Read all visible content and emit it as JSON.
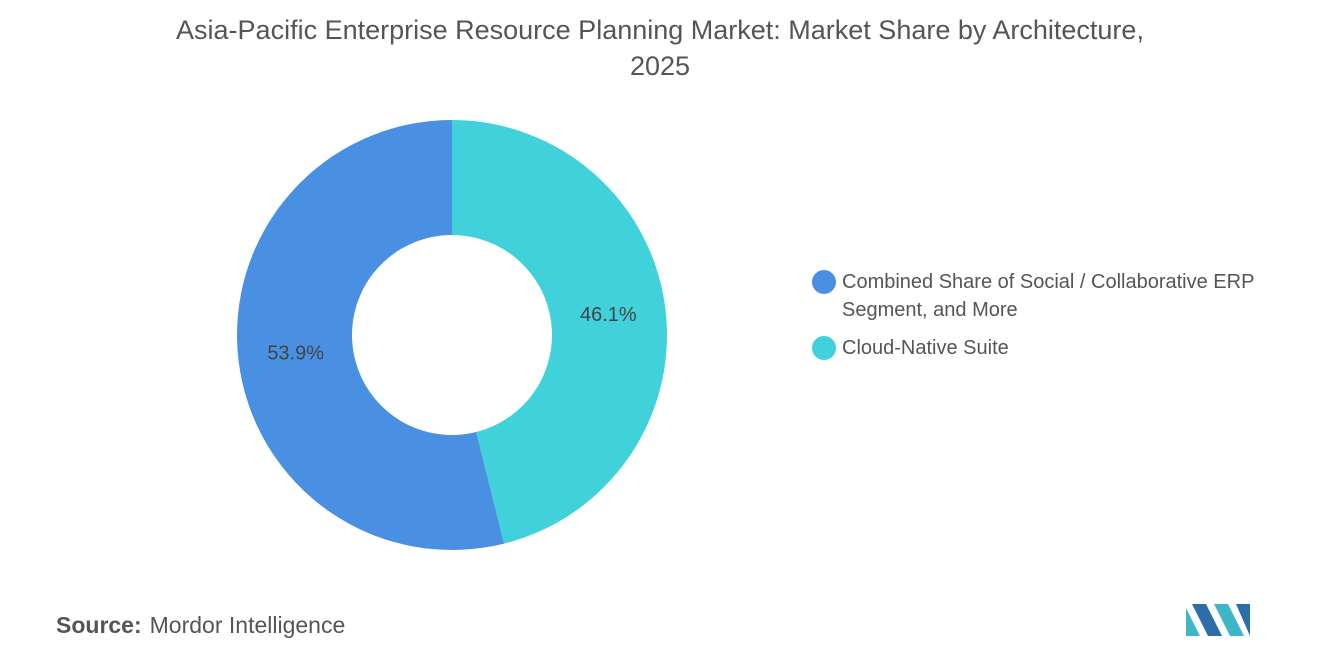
{
  "chart_data": {
    "type": "pie",
    "donut": true,
    "title": "Asia-Pacific Enterprise Resource Planning Market: Market Share by Architecture, 2025",
    "categories": [
      "Combined Share of Social / Collaborative ERP Segment, and More",
      "Cloud-Native Suite"
    ],
    "values": [
      53.9,
      46.1
    ],
    "value_labels": [
      "53.9%",
      "46.1%"
    ],
    "colors": [
      "#4a90e2",
      "#40d1db"
    ],
    "source_label": "Source:",
    "source": "Mordor Intelligence"
  }
}
